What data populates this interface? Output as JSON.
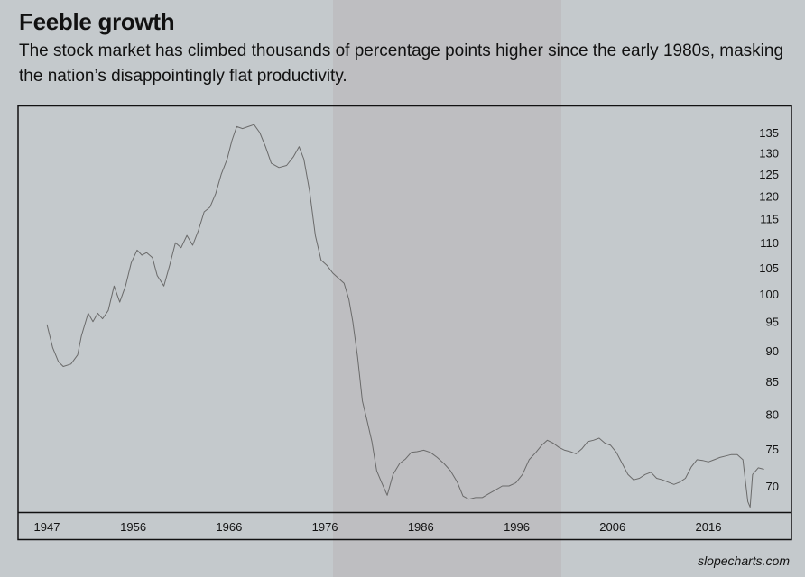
{
  "header": {
    "title": "Feeble growth",
    "subtitle": "The stock market has climbed thousands of percentage points higher since the early 1980s, masking the nation’s disappointingly flat productivity."
  },
  "footer": {
    "credit": "slopecharts.com"
  },
  "style": {
    "background": "#c4c9cc",
    "shade": "#bebec1",
    "line": "#6a6a6a",
    "frame": "#111111"
  },
  "chart_data": {
    "type": "line",
    "title": "Feeble growth",
    "subtitle": "The stock market has climbed thousands of percentage points higher since the early 1980s, masking the nation’s disappointingly flat productivity.",
    "xlabel": "",
    "ylabel": "",
    "x_ticks": [
      "1947",
      "1956",
      "1966",
      "1976",
      "1986",
      "1996",
      "2006",
      "2016"
    ],
    "y_ticks": [
      70,
      75,
      80,
      85,
      90,
      95,
      100,
      105,
      110,
      115,
      120,
      125,
      130,
      135
    ],
    "y_scale": "log",
    "xlim": [
      1946,
      2025
    ],
    "ylim": [
      67,
      140
    ],
    "shaded_period": [
      1976.6,
      2000.3
    ],
    "grid": false,
    "legend": "none",
    "x": [
      1947,
      1947.6,
      1948.2,
      1948.7,
      1949.5,
      1950.2,
      1950.6,
      1951.3,
      1951.8,
      1952.3,
      1952.8,
      1953.4,
      1954,
      1954.6,
      1955.2,
      1955.8,
      1956.4,
      1956.9,
      1957.4,
      1958,
      1958.5,
      1959.2,
      1959.8,
      1960.4,
      1961,
      1961.6,
      1962.2,
      1962.8,
      1963.4,
      1964,
      1964.6,
      1965.2,
      1965.8,
      1966.3,
      1966.8,
      1967.4,
      1968,
      1968.6,
      1969.2,
      1969.8,
      1970.4,
      1971.2,
      1972,
      1972.7,
      1973.3,
      1973.8,
      1974.4,
      1975,
      1975.6,
      1976.2,
      1976.8,
      1977.4,
      1978,
      1978.5,
      1978.9,
      1979.4,
      1979.9,
      1980.4,
      1980.9,
      1981.4,
      1981.9,
      1982.5,
      1983.1,
      1983.8,
      1984.4,
      1985,
      1985.6,
      1986.3,
      1987,
      1987.7,
      1988.4,
      1989.1,
      1989.8,
      1990.4,
      1991,
      1991.7,
      1992.4,
      1993.1,
      1993.8,
      1994.5,
      1995.2,
      1995.9,
      1996.6,
      1997.3,
      1998,
      1998.6,
      1999.2,
      1999.8,
      2000.4,
      2001,
      2001.6,
      2002.2,
      2002.8,
      2003.4,
      2004,
      2004.6,
      2005.2,
      2005.8,
      2006.4,
      2007,
      2007.6,
      2008.2,
      2008.8,
      2009.4,
      2010,
      2010.6,
      2011.2,
      2011.8,
      2012.4,
      2013,
      2013.6,
      2014.2,
      2014.8,
      2015.4,
      2016,
      2016.6,
      2017.2,
      2017.8,
      2018.4,
      2019,
      2019.6,
      2020.1,
      2020.35,
      2020.6,
      2021.2,
      2021.8
    ],
    "series": [
      {
        "values": [
          94.5,
          90.5,
          88.2,
          87.4,
          87.8,
          89.3,
          92.5,
          96.5,
          95,
          96.5,
          95.5,
          97,
          101.5,
          98.5,
          101.5,
          106,
          108.5,
          107.5,
          108,
          107,
          103.5,
          101.5,
          105.5,
          110,
          109,
          111.5,
          109.5,
          112.5,
          116.5,
          117.5,
          120.5,
          125,
          128.5,
          133,
          136.5,
          136,
          136.5,
          137,
          135,
          131.5,
          127.5,
          126.5,
          127,
          129,
          131.5,
          128.5,
          121,
          111.5,
          106.5,
          105.5,
          104,
          103,
          102,
          99,
          95,
          89,
          82,
          79,
          76,
          72,
          70.5,
          68.8,
          71.5,
          73,
          73.6,
          74.5,
          74.6,
          74.8,
          74.5,
          73.8,
          73,
          72,
          70.5,
          68.7,
          68.3,
          68.5,
          68.5,
          69,
          69.5,
          70,
          70,
          70.4,
          71.5,
          73.5,
          74.5,
          75.5,
          76.2,
          75.8,
          75.2,
          74.8,
          74.6,
          74.3,
          75,
          76,
          76.2,
          76.5,
          75.8,
          75.5,
          74.5,
          73,
          71.5,
          70.8,
          71,
          71.5,
          71.8,
          71,
          70.8,
          70.5,
          70.2,
          70.5,
          71,
          72.5,
          73.5,
          73.4,
          73.2,
          73.5,
          73.8,
          74,
          74.2,
          74.2,
          73.5,
          68,
          67.3,
          71.5,
          72.4,
          72.2
        ]
      }
    ]
  }
}
